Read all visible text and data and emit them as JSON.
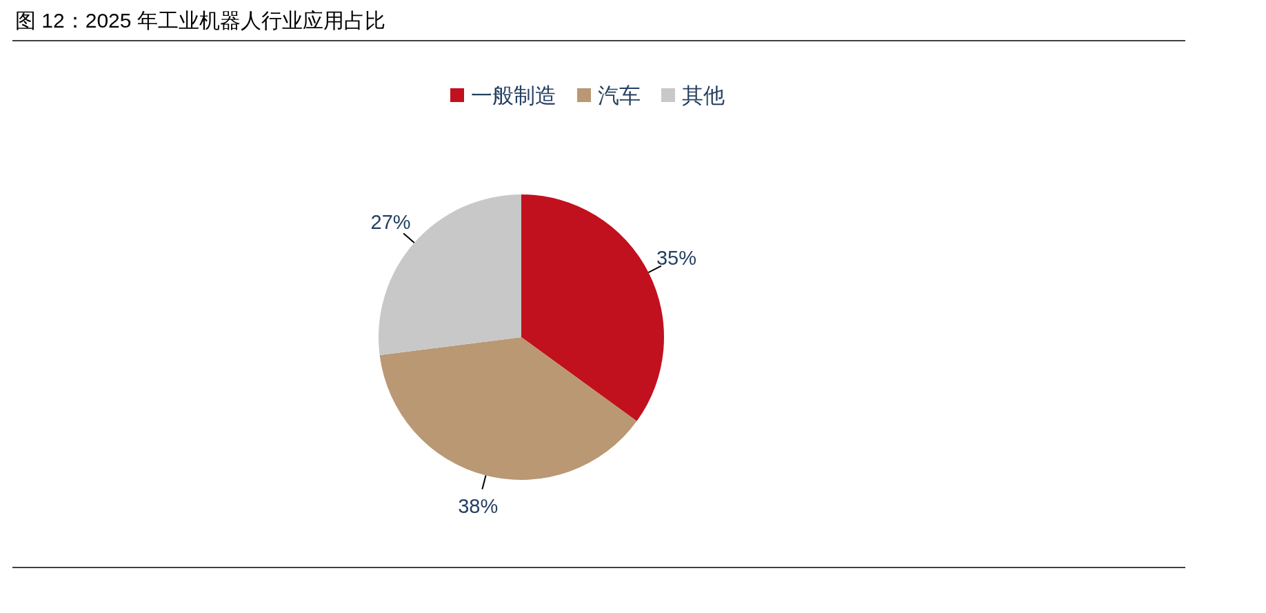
{
  "chart_data": {
    "type": "pie",
    "title": "图 12：2025 年工业机器人行业应用占比",
    "categories": [
      "一般制造",
      "汽车",
      "其他"
    ],
    "values": [
      35,
      38,
      27
    ],
    "colors": [
      "#c1111e",
      "#b99873",
      "#c8c8c8"
    ],
    "value_labels": [
      "35%",
      "38%",
      "27%"
    ],
    "legend": "top"
  }
}
